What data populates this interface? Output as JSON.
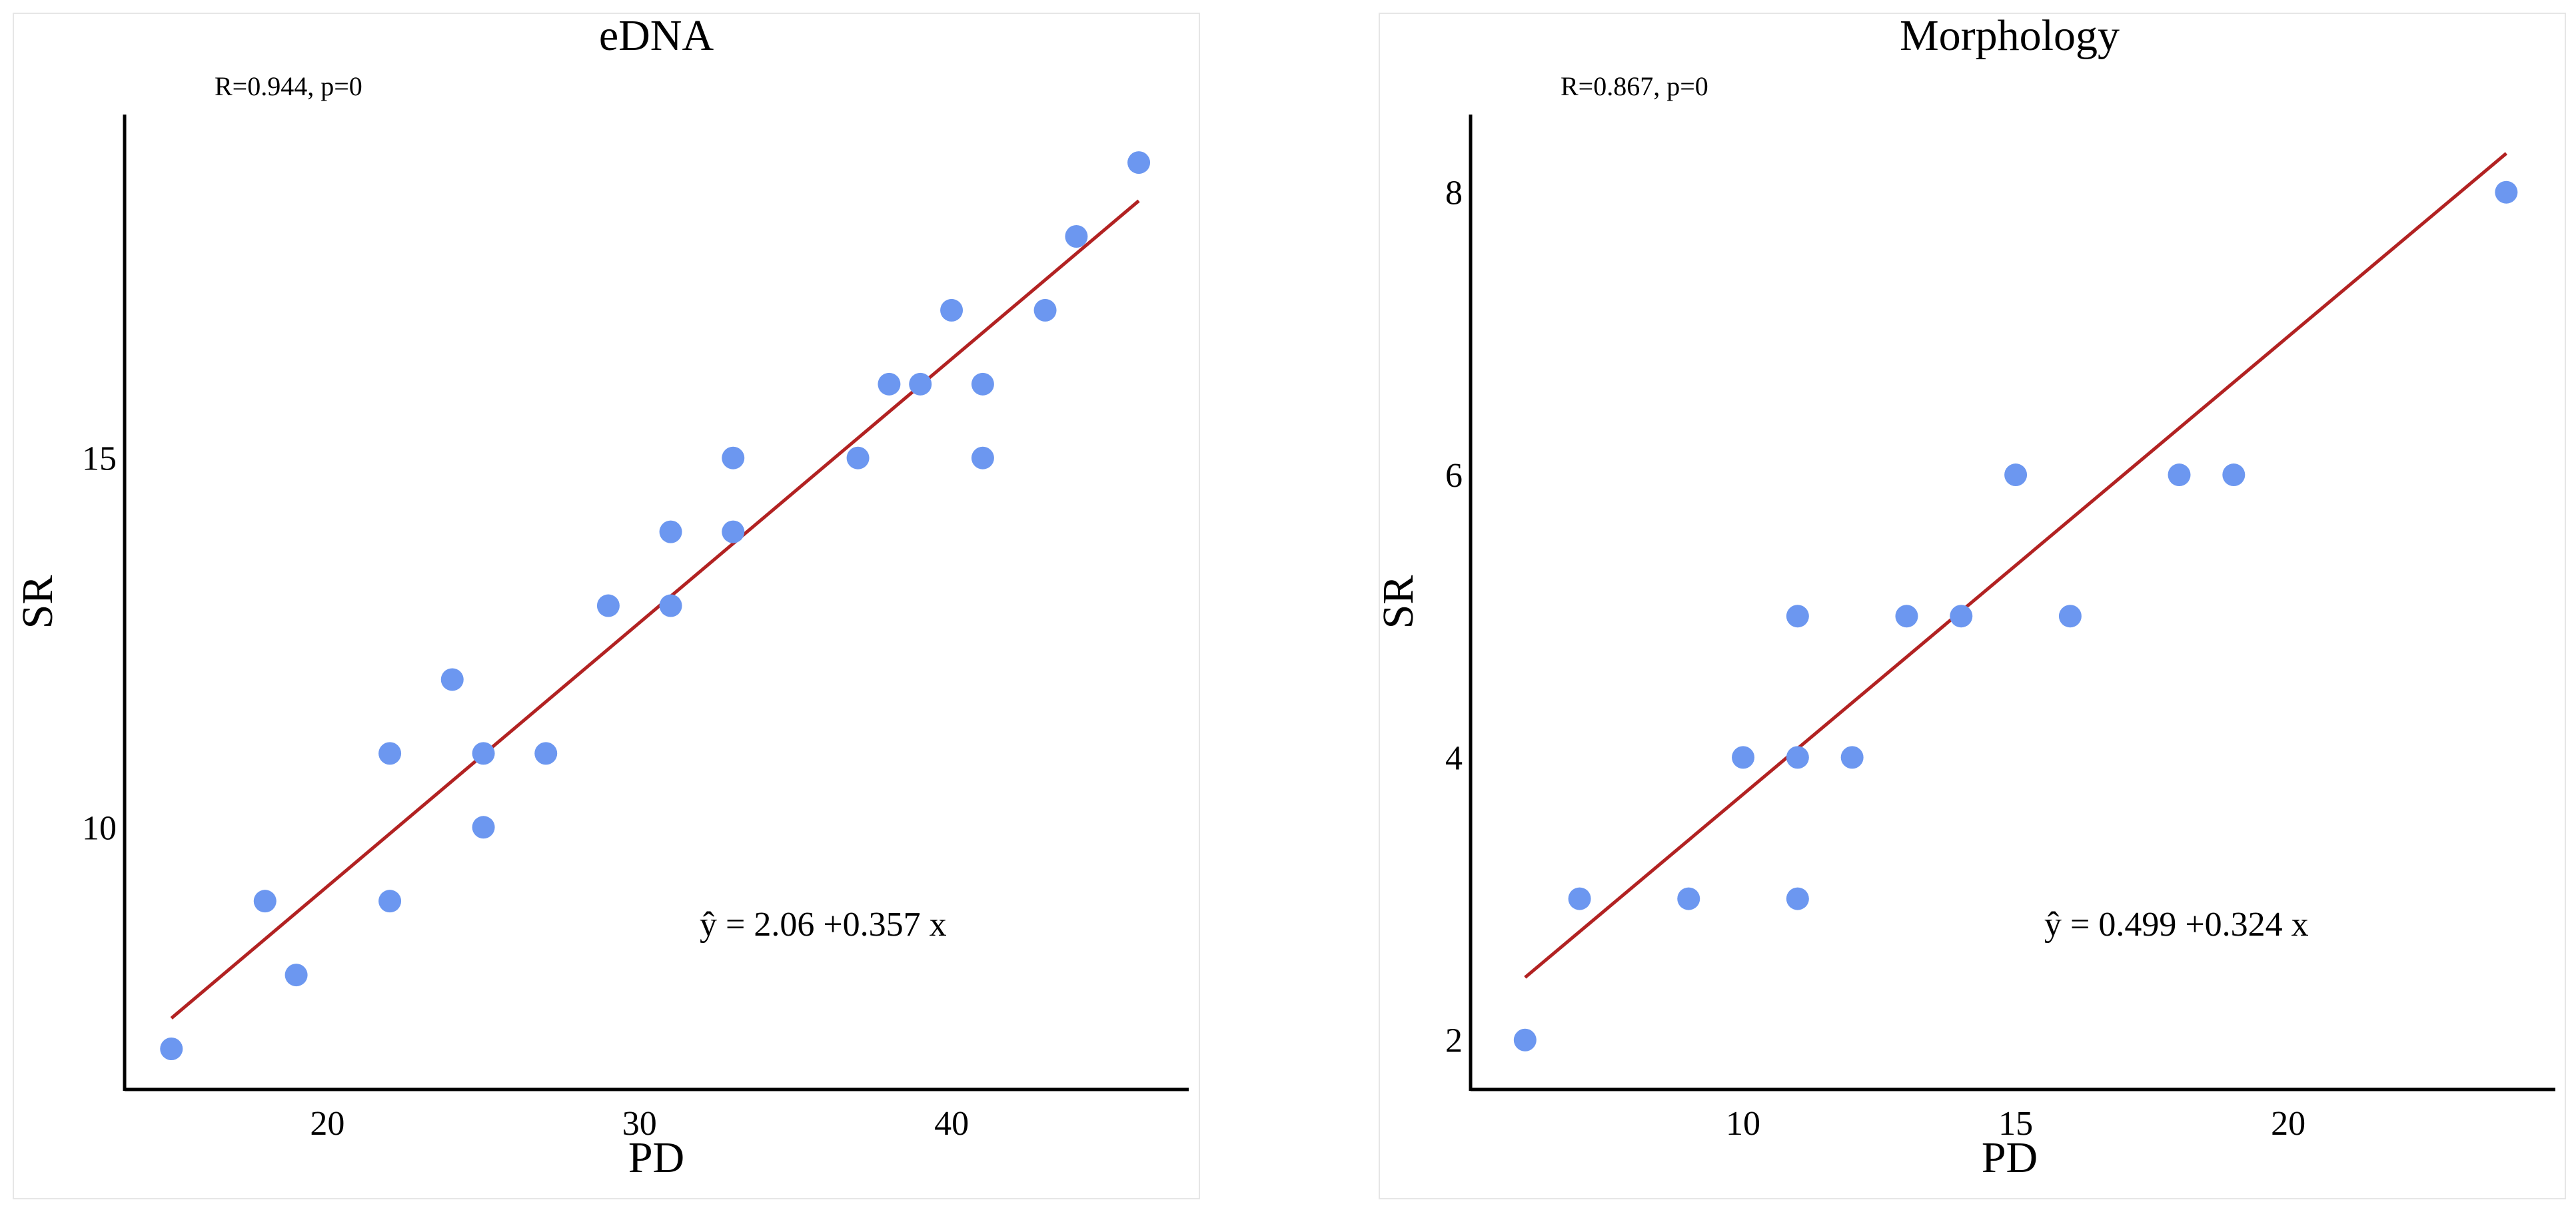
{
  "chart_data": [
    {
      "type": "scatter",
      "title": "eDNA",
      "xlabel": "PD",
      "ylabel": "SR",
      "xlim": [
        13.5,
        47.6
      ],
      "ylim": [
        6.45,
        19.65
      ],
      "xticks": [
        20,
        30,
        40
      ],
      "yticks": [
        10,
        15
      ],
      "stats": "R=0.944,   p=0",
      "equation": "ŷ = 2.06 +0.357 x",
      "colors": {
        "points": "#6c97f0",
        "fit": "#b22222"
      },
      "regression": {
        "intercept": 2.06,
        "slope": 0.357,
        "x_range": [
          15,
          46
        ]
      },
      "points": [
        {
          "x": 15,
          "y": 7
        },
        {
          "x": 18,
          "y": 9
        },
        {
          "x": 19,
          "y": 8
        },
        {
          "x": 22,
          "y": 11
        },
        {
          "x": 22,
          "y": 9
        },
        {
          "x": 24,
          "y": 12
        },
        {
          "x": 25,
          "y": 11
        },
        {
          "x": 25,
          "y": 10
        },
        {
          "x": 27,
          "y": 11
        },
        {
          "x": 29,
          "y": 13
        },
        {
          "x": 31,
          "y": 14
        },
        {
          "x": 31,
          "y": 13
        },
        {
          "x": 33,
          "y": 15
        },
        {
          "x": 33,
          "y": 14
        },
        {
          "x": 37,
          "y": 15
        },
        {
          "x": 38,
          "y": 16
        },
        {
          "x": 39,
          "y": 16
        },
        {
          "x": 40,
          "y": 17
        },
        {
          "x": 41,
          "y": 16
        },
        {
          "x": 41,
          "y": 15
        },
        {
          "x": 43,
          "y": 17
        },
        {
          "x": 44,
          "y": 18
        },
        {
          "x": 46,
          "y": 19
        }
      ]
    },
    {
      "type": "scatter",
      "title": "Morphology",
      "xlabel": "PD",
      "ylabel": "SR",
      "xlim": [
        5.0,
        24.9
      ],
      "ylim": [
        1.65,
        8.55
      ],
      "xticks": [
        10,
        15,
        20
      ],
      "yticks": [
        2,
        4,
        6,
        8
      ],
      "stats": "R=0.867,   p=0",
      "equation": "ŷ = 0.499 +0.324 x",
      "colors": {
        "points": "#6c97f0",
        "fit": "#b22222"
      },
      "regression": {
        "intercept": 0.499,
        "slope": 0.324,
        "x_range": [
          6,
          24
        ]
      },
      "points": [
        {
          "x": 6,
          "y": 2
        },
        {
          "x": 7,
          "y": 3
        },
        {
          "x": 9,
          "y": 3
        },
        {
          "x": 10,
          "y": 4
        },
        {
          "x": 11,
          "y": 5
        },
        {
          "x": 11,
          "y": 4
        },
        {
          "x": 11,
          "y": 3
        },
        {
          "x": 12,
          "y": 4
        },
        {
          "x": 13,
          "y": 5
        },
        {
          "x": 14,
          "y": 5
        },
        {
          "x": 15,
          "y": 6
        },
        {
          "x": 16,
          "y": 5
        },
        {
          "x": 18,
          "y": 6
        },
        {
          "x": 19,
          "y": 6
        },
        {
          "x": 24,
          "y": 8
        }
      ]
    }
  ]
}
